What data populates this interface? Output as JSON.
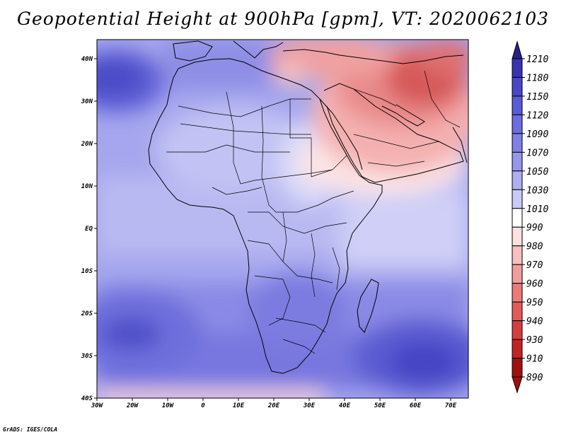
{
  "title": "Geopotential Height at 900hPa [gpm], VT: 2020062103",
  "credit": "GrADS: IGES/COLA",
  "axes": {
    "lat_labels": [
      "40N",
      "30N",
      "20N",
      "10N",
      "EQ",
      "10S",
      "20S",
      "30S",
      "40S"
    ],
    "lon_labels": [
      "30W",
      "20W",
      "10W",
      "0",
      "10E",
      "20E",
      "30E",
      "40E",
      "50E",
      "60E",
      "70E"
    ]
  },
  "colorbar": {
    "levels": [
      "1210",
      "1180",
      "1150",
      "1120",
      "1090",
      "1070",
      "1050",
      "1030",
      "1010",
      "990",
      "980",
      "970",
      "960",
      "950",
      "940",
      "930",
      "910",
      "890"
    ],
    "colors": [
      "#2a1f8c",
      "#3a33b0",
      "#4a46c8",
      "#5a5bd6",
      "#6c6ddf",
      "#8080e6",
      "#9696ea",
      "#aeaef0",
      "#cacaf6",
      "#ffffff",
      "#fde0e0",
      "#f8bfbf",
      "#f29d9d",
      "#ea7b7b",
      "#e05c5c",
      "#d43e3e",
      "#bf2525",
      "#a01010"
    ]
  }
}
